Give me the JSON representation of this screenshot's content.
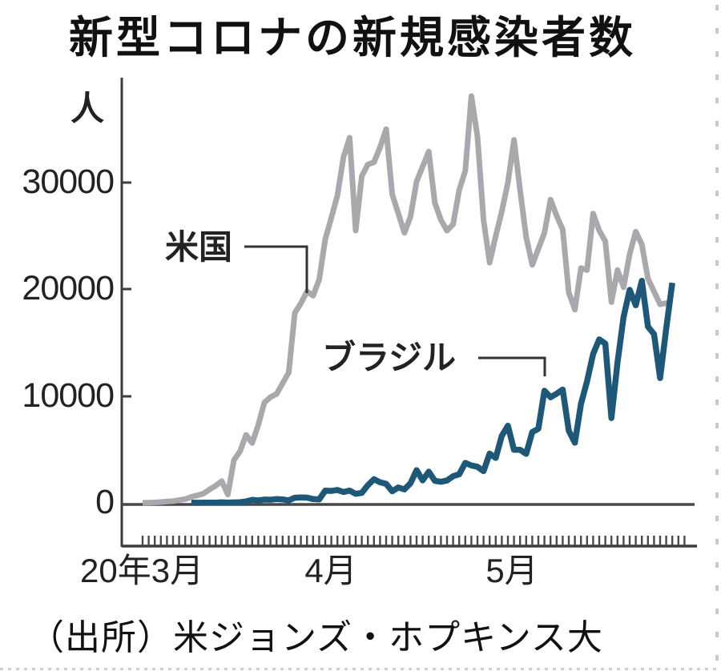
{
  "title": "新型コロナの新規感染者数",
  "source": "（出所）米ジョンズ・ホプキンス大",
  "y_axis": {
    "unit_label": "人",
    "ticks": [
      "30000",
      "20000",
      "10000",
      "0"
    ]
  },
  "x_axis": {
    "month_labels": [
      "20年3月",
      "4月",
      "5月"
    ]
  },
  "series_labels": {
    "us": "米国",
    "brazil": "ブラジル"
  },
  "colors": {
    "us_line": "#a9a8ac",
    "brazil_line": "#1d5878",
    "axis": "#3d3d3d",
    "connector": "#333333",
    "text": "#1a1a1a"
  },
  "chart_data": {
    "type": "line",
    "title": "新型コロナの新規感染者数",
    "ylabel": "人",
    "ylim": [
      0,
      38500
    ],
    "y_ticks": [
      0,
      10000,
      20000,
      30000
    ],
    "x_start": "2020-03-01",
    "x_end": "2020-05-27",
    "x_tick_labels": [
      "20年3月",
      "4月",
      "5月"
    ],
    "grid": false,
    "legend_position": "inline-callouts",
    "series": [
      {
        "name": "米国",
        "color": "#a9a8ac",
        "start_offset": 0,
        "values": [
          6,
          23,
          34,
          78,
          120,
          158,
          265,
          342,
          564,
          695,
          869,
          1250,
          1600,
          2030,
          780,
          4000,
          4830,
          6370,
          5600,
          7300,
          9400,
          9900,
          10200,
          11200,
          12200,
          17800,
          18700,
          19800,
          19400,
          20900,
          24700,
          26700,
          28800,
          32400,
          34200,
          25500,
          30600,
          31700,
          31900,
          33300,
          35000,
          28900,
          27100,
          25300,
          26800,
          30100,
          31500,
          32900,
          28100,
          26500,
          25500,
          26100,
          29300,
          31100,
          38100,
          34300,
          26500,
          22500,
          25000,
          27300,
          30000,
          34000,
          29300,
          24900,
          22300,
          23800,
          25300,
          28400,
          26900,
          25600,
          19700,
          18100,
          22000,
          21800,
          27100,
          25500,
          24500,
          18800,
          21800,
          20200,
          23300,
          25400,
          24200,
          21000,
          19800,
          18600,
          18700,
          18700
        ]
      },
      {
        "name": "ブラジル",
        "color": "#1d5878",
        "start_offset": 8,
        "values": [
          0,
          0,
          0,
          0,
          0,
          1,
          6,
          6,
          12,
          9,
          18,
          25,
          21,
          46,
          15,
          34,
          57,
          137,
          283,
          224,
          310,
          292,
          352,
          323,
          232,
          482,
          502,
          487,
          352,
          323,
          1140,
          1120,
          1210,
          1010,
          1150,
          850,
          930,
          1660,
          2210,
          1930,
          1780,
          1090,
          1440,
          1260,
          1830,
          3060,
          2110,
          2920,
          2060,
          1970,
          2090,
          2500,
          2680,
          3740,
          3500,
          3380,
          2970,
          4610,
          4210,
          6280,
          7220,
          4970,
          4970,
          4590,
          6630,
          6940,
          10500,
          9890,
          10220,
          10610,
          6760,
          5630,
          9260,
          11390,
          13940,
          15310,
          14920,
          7940,
          13140,
          17410,
          19950,
          18510,
          20800,
          16510,
          15810,
          11690,
          16320,
          20600
        ]
      }
    ]
  }
}
